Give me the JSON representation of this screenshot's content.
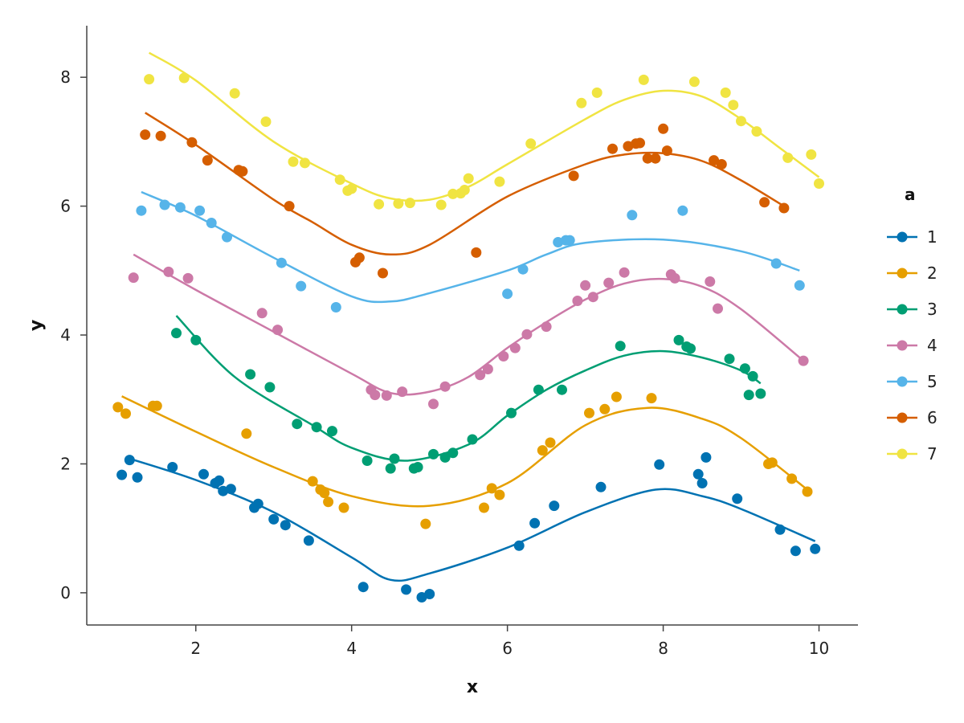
{
  "chart_data": {
    "type": "scatter",
    "title": "",
    "xlabel": "x",
    "ylabel": "y",
    "xlim": [
      0.6,
      10.5
    ],
    "ylim": [
      -0.5,
      8.8
    ],
    "xticks": [
      2,
      4,
      6,
      8,
      10
    ],
    "yticks": [
      0,
      2,
      4,
      6,
      8
    ],
    "grid": false,
    "legend": {
      "title": "a",
      "placement": "right"
    },
    "series": [
      {
        "name": "1",
        "color": "#0072B2",
        "points": [
          [
            1.05,
            1.83
          ],
          [
            1.15,
            2.06
          ],
          [
            1.25,
            1.79
          ],
          [
            1.7,
            1.95
          ],
          [
            2.1,
            1.84
          ],
          [
            2.25,
            1.7
          ],
          [
            2.3,
            1.74
          ],
          [
            2.35,
            1.58
          ],
          [
            2.45,
            1.61
          ],
          [
            2.75,
            1.32
          ],
          [
            2.8,
            1.38
          ],
          [
            3.0,
            1.14
          ],
          [
            3.15,
            1.05
          ],
          [
            3.45,
            0.81
          ],
          [
            4.15,
            0.09
          ],
          [
            4.7,
            0.05
          ],
          [
            4.9,
            -0.07
          ],
          [
            5.0,
            -0.02
          ],
          [
            6.15,
            0.73
          ],
          [
            6.35,
            1.08
          ],
          [
            6.6,
            1.35
          ],
          [
            7.2,
            1.64
          ],
          [
            7.95,
            1.99
          ],
          [
            8.45,
            1.84
          ],
          [
            8.5,
            1.7
          ],
          [
            8.55,
            2.1
          ],
          [
            8.95,
            1.46
          ],
          [
            9.5,
            0.98
          ],
          [
            9.7,
            0.65
          ],
          [
            9.95,
            0.68
          ]
        ],
        "fit": [
          [
            1.1,
            2.1
          ],
          [
            2.0,
            1.75
          ],
          [
            3.0,
            1.25
          ],
          [
            4.0,
            0.55
          ],
          [
            4.5,
            0.2
          ],
          [
            5.0,
            0.3
          ],
          [
            6.0,
            0.7
          ],
          [
            7.0,
            1.25
          ],
          [
            7.9,
            1.6
          ],
          [
            8.5,
            1.5
          ],
          [
            9.0,
            1.3
          ],
          [
            9.95,
            0.8
          ]
        ]
      },
      {
        "name": "2",
        "color": "#E69F00",
        "points": [
          [
            1.0,
            2.88
          ],
          [
            1.1,
            2.78
          ],
          [
            1.45,
            2.9
          ],
          [
            1.5,
            2.9
          ],
          [
            2.65,
            2.47
          ],
          [
            3.5,
            1.73
          ],
          [
            3.6,
            1.6
          ],
          [
            3.65,
            1.55
          ],
          [
            3.7,
            1.41
          ],
          [
            3.9,
            1.32
          ],
          [
            4.95,
            1.07
          ],
          [
            5.7,
            1.32
          ],
          [
            5.8,
            1.62
          ],
          [
            5.9,
            1.52
          ],
          [
            6.45,
            2.21
          ],
          [
            6.55,
            2.33
          ],
          [
            7.05,
            2.79
          ],
          [
            7.25,
            2.85
          ],
          [
            7.4,
            3.04
          ],
          [
            7.85,
            3.02
          ],
          [
            9.35,
            2.0
          ],
          [
            9.4,
            2.02
          ],
          [
            9.65,
            1.77
          ],
          [
            9.85,
            1.57
          ]
        ],
        "fit": [
          [
            1.05,
            3.05
          ],
          [
            2.0,
            2.5
          ],
          [
            3.0,
            1.95
          ],
          [
            4.0,
            1.5
          ],
          [
            5.0,
            1.35
          ],
          [
            6.0,
            1.7
          ],
          [
            7.0,
            2.6
          ],
          [
            7.8,
            2.87
          ],
          [
            8.5,
            2.7
          ],
          [
            9.0,
            2.4
          ],
          [
            9.85,
            1.6
          ]
        ]
      },
      {
        "name": "3",
        "color": "#009E73",
        "points": [
          [
            1.75,
            4.03
          ],
          [
            2.0,
            3.92
          ],
          [
            2.7,
            3.39
          ],
          [
            2.95,
            3.19
          ],
          [
            3.3,
            2.62
          ],
          [
            3.55,
            2.57
          ],
          [
            3.75,
            2.51
          ],
          [
            4.2,
            2.05
          ],
          [
            4.5,
            1.93
          ],
          [
            4.55,
            2.08
          ],
          [
            4.8,
            1.93
          ],
          [
            4.85,
            1.95
          ],
          [
            5.05,
            2.15
          ],
          [
            5.2,
            2.1
          ],
          [
            5.3,
            2.17
          ],
          [
            5.55,
            2.38
          ],
          [
            6.05,
            2.79
          ],
          [
            6.4,
            3.15
          ],
          [
            6.7,
            3.15
          ],
          [
            7.45,
            3.83
          ],
          [
            8.2,
            3.92
          ],
          [
            8.3,
            3.82
          ],
          [
            8.35,
            3.79
          ],
          [
            8.85,
            3.63
          ],
          [
            9.05,
            3.48
          ],
          [
            9.1,
            3.07
          ],
          [
            9.15,
            3.36
          ],
          [
            9.25,
            3.09
          ]
        ],
        "fit": [
          [
            1.75,
            4.3
          ],
          [
            2.5,
            3.35
          ],
          [
            3.5,
            2.6
          ],
          [
            4.0,
            2.25
          ],
          [
            4.7,
            2.05
          ],
          [
            5.5,
            2.3
          ],
          [
            6.0,
            2.75
          ],
          [
            6.5,
            3.15
          ],
          [
            7.0,
            3.45
          ],
          [
            7.5,
            3.68
          ],
          [
            8.0,
            3.75
          ],
          [
            8.5,
            3.65
          ],
          [
            9.0,
            3.45
          ],
          [
            9.25,
            3.25
          ]
        ]
      },
      {
        "name": "4",
        "color": "#CC79A7",
        "points": [
          [
            1.2,
            4.89
          ],
          [
            1.65,
            4.98
          ],
          [
            1.9,
            4.88
          ],
          [
            2.85,
            4.34
          ],
          [
            3.05,
            4.08
          ],
          [
            4.25,
            3.15
          ],
          [
            4.3,
            3.07
          ],
          [
            4.45,
            3.06
          ],
          [
            4.65,
            3.12
          ],
          [
            5.05,
            2.93
          ],
          [
            5.2,
            3.2
          ],
          [
            5.65,
            3.38
          ],
          [
            5.75,
            3.47
          ],
          [
            5.95,
            3.67
          ],
          [
            6.1,
            3.8
          ],
          [
            6.25,
            4.01
          ],
          [
            6.5,
            4.13
          ],
          [
            6.9,
            4.53
          ],
          [
            7.0,
            4.77
          ],
          [
            7.1,
            4.59
          ],
          [
            7.3,
            4.81
          ],
          [
            7.5,
            4.97
          ],
          [
            8.1,
            4.94
          ],
          [
            8.15,
            4.88
          ],
          [
            8.6,
            4.83
          ],
          [
            8.7,
            4.41
          ],
          [
            9.8,
            3.6
          ]
        ],
        "fit": [
          [
            1.2,
            5.25
          ],
          [
            2.0,
            4.7
          ],
          [
            3.0,
            4.05
          ],
          [
            4.0,
            3.4
          ],
          [
            4.5,
            3.1
          ],
          [
            5.0,
            3.12
          ],
          [
            5.5,
            3.35
          ],
          [
            6.0,
            3.8
          ],
          [
            6.5,
            4.2
          ],
          [
            7.0,
            4.55
          ],
          [
            7.5,
            4.8
          ],
          [
            8.0,
            4.87
          ],
          [
            8.5,
            4.75
          ],
          [
            9.0,
            4.4
          ],
          [
            9.8,
            3.6
          ]
        ]
      },
      {
        "name": "5",
        "color": "#56B4E9",
        "points": [
          [
            1.3,
            5.93
          ],
          [
            1.6,
            6.02
          ],
          [
            1.8,
            5.98
          ],
          [
            2.05,
            5.93
          ],
          [
            2.2,
            5.74
          ],
          [
            2.4,
            5.52
          ],
          [
            3.1,
            5.12
          ],
          [
            3.35,
            4.76
          ],
          [
            3.8,
            4.43
          ],
          [
            6.0,
            4.64
          ],
          [
            6.2,
            5.02
          ],
          [
            6.65,
            5.44
          ],
          [
            6.75,
            5.47
          ],
          [
            6.8,
            5.47
          ],
          [
            7.6,
            5.86
          ],
          [
            8.25,
            5.93
          ],
          [
            9.45,
            5.11
          ],
          [
            9.75,
            4.77
          ]
        ],
        "fit": [
          [
            1.3,
            6.22
          ],
          [
            2.0,
            5.85
          ],
          [
            3.0,
            5.2
          ],
          [
            4.0,
            4.6
          ],
          [
            4.5,
            4.52
          ],
          [
            5.0,
            4.65
          ],
          [
            6.0,
            5.0
          ],
          [
            6.5,
            5.25
          ],
          [
            7.0,
            5.43
          ],
          [
            8.0,
            5.48
          ],
          [
            9.0,
            5.3
          ],
          [
            9.75,
            5.0
          ]
        ]
      },
      {
        "name": "6",
        "color": "#D55E00",
        "points": [
          [
            1.35,
            7.11
          ],
          [
            1.55,
            7.09
          ],
          [
            1.95,
            6.99
          ],
          [
            2.15,
            6.71
          ],
          [
            2.55,
            6.56
          ],
          [
            2.6,
            6.54
          ],
          [
            3.2,
            6.0
          ],
          [
            4.05,
            5.13
          ],
          [
            4.1,
            5.2
          ],
          [
            4.4,
            4.96
          ],
          [
            5.6,
            5.28
          ],
          [
            6.85,
            6.47
          ],
          [
            7.35,
            6.89
          ],
          [
            7.55,
            6.93
          ],
          [
            7.65,
            6.97
          ],
          [
            7.7,
            6.98
          ],
          [
            7.8,
            6.74
          ],
          [
            7.9,
            6.74
          ],
          [
            8.0,
            7.2
          ],
          [
            8.05,
            6.86
          ],
          [
            8.65,
            6.71
          ],
          [
            8.75,
            6.65
          ],
          [
            9.3,
            6.06
          ],
          [
            9.55,
            5.97
          ]
        ],
        "fit": [
          [
            1.35,
            7.45
          ],
          [
            2.0,
            6.95
          ],
          [
            3.0,
            6.1
          ],
          [
            3.5,
            5.75
          ],
          [
            4.0,
            5.4
          ],
          [
            4.5,
            5.25
          ],
          [
            5.0,
            5.4
          ],
          [
            6.0,
            6.15
          ],
          [
            7.0,
            6.65
          ],
          [
            7.5,
            6.8
          ],
          [
            8.0,
            6.82
          ],
          [
            8.5,
            6.7
          ],
          [
            9.0,
            6.4
          ],
          [
            9.55,
            6.0
          ]
        ]
      },
      {
        "name": "7",
        "color": "#F0E442",
        "points": [
          [
            1.4,
            7.97
          ],
          [
            1.85,
            7.99
          ],
          [
            2.5,
            7.75
          ],
          [
            2.9,
            7.31
          ],
          [
            3.25,
            6.69
          ],
          [
            3.4,
            6.67
          ],
          [
            3.85,
            6.41
          ],
          [
            3.95,
            6.24
          ],
          [
            4.0,
            6.27
          ],
          [
            4.35,
            6.03
          ],
          [
            4.6,
            6.04
          ],
          [
            4.75,
            6.05
          ],
          [
            5.15,
            6.02
          ],
          [
            5.3,
            6.19
          ],
          [
            5.4,
            6.2
          ],
          [
            5.45,
            6.25
          ],
          [
            5.5,
            6.43
          ],
          [
            5.9,
            6.38
          ],
          [
            6.3,
            6.97
          ],
          [
            6.95,
            7.6
          ],
          [
            7.15,
            7.76
          ],
          [
            7.75,
            7.96
          ],
          [
            8.4,
            7.93
          ],
          [
            8.8,
            7.76
          ],
          [
            8.9,
            7.57
          ],
          [
            9.0,
            7.32
          ],
          [
            9.2,
            7.16
          ],
          [
            9.6,
            6.75
          ],
          [
            9.9,
            6.8
          ],
          [
            10.0,
            6.35
          ]
        ],
        "fit": [
          [
            1.4,
            8.38
          ],
          [
            2.0,
            7.95
          ],
          [
            3.0,
            7.0
          ],
          [
            4.0,
            6.35
          ],
          [
            4.5,
            6.12
          ],
          [
            5.0,
            6.1
          ],
          [
            5.5,
            6.3
          ],
          [
            6.0,
            6.65
          ],
          [
            7.0,
            7.35
          ],
          [
            7.5,
            7.65
          ],
          [
            8.0,
            7.79
          ],
          [
            8.5,
            7.7
          ],
          [
            9.0,
            7.35
          ],
          [
            9.5,
            6.9
          ],
          [
            10.0,
            6.45
          ]
        ]
      }
    ]
  }
}
